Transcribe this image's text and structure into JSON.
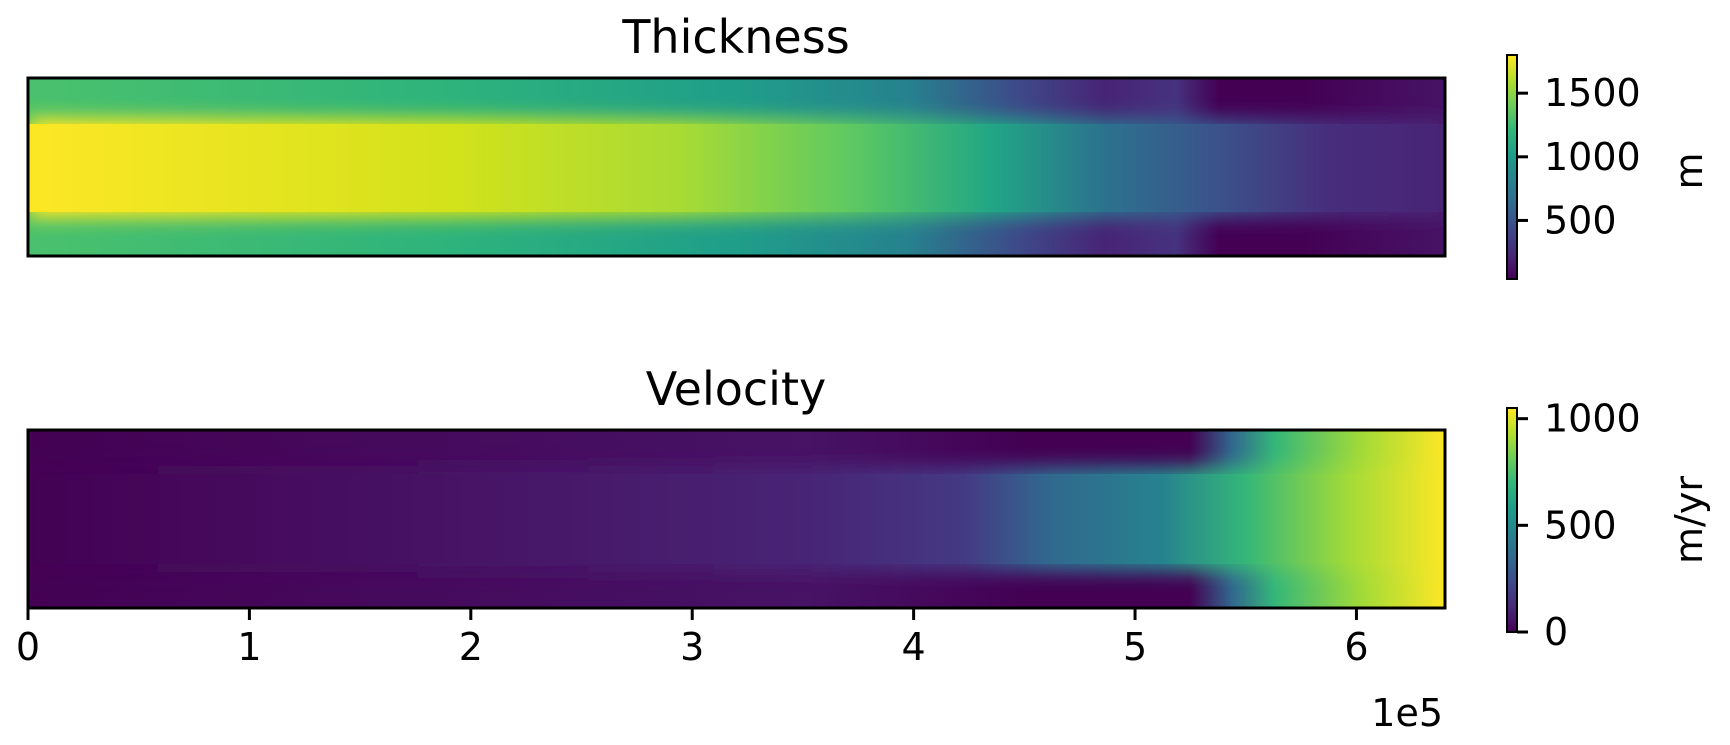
{
  "colors": {
    "viridis": [
      "#440154",
      "#482878",
      "#3e4989",
      "#31688e",
      "#26828e",
      "#1f9e89",
      "#35b779",
      "#6ece58",
      "#b5de2b",
      "#fde725"
    ],
    "frame": "#000000"
  },
  "chart_data": [
    {
      "type": "heatmap",
      "title": "Thickness",
      "colorbar": {
        "label": "m",
        "ticks": [
          500,
          1000,
          1500
        ],
        "tick_labels": [
          "500",
          "1000",
          "1500"
        ],
        "range": [
          40,
          1800
        ],
        "colormap": "viridis"
      },
      "x_axis": {
        "visible": false
      },
      "y_axis": {
        "visible": false
      },
      "description_values": {
        "x": [
          0,
          100000,
          200000,
          300000,
          400000,
          450000,
          500000,
          530000,
          560000,
          640000
        ],
        "center_band": [
          1750,
          1680,
          1580,
          1420,
          1150,
          700,
          400,
          220,
          160,
          150
        ],
        "edge_band": [
          1000,
          960,
          920,
          880,
          700,
          320,
          200,
          60,
          40,
          120
        ]
      }
    },
    {
      "type": "heatmap",
      "title": "Velocity",
      "colorbar": {
        "label": "m/yr",
        "ticks": [
          0,
          500,
          1000
        ],
        "tick_labels": [
          "0",
          "500",
          "1000"
        ],
        "range": [
          0,
          1050
        ],
        "colormap": "viridis"
      },
      "x_axis": {
        "ticks": [
          0,
          1,
          2,
          3,
          4,
          5,
          6
        ],
        "tick_labels": [
          "0",
          "1",
          "2",
          "3",
          "4",
          "5",
          "6"
        ],
        "offset_text": "1e5",
        "range": [
          0,
          6.4
        ]
      },
      "y_axis": {
        "visible": false
      },
      "description_values": {
        "x": [
          0,
          100000,
          200000,
          300000,
          400000,
          450000,
          500000,
          530000,
          560000,
          640000
        ],
        "center_band": [
          20,
          60,
          110,
          160,
          230,
          340,
          560,
          680,
          780,
          1030
        ],
        "edge_band": [
          10,
          30,
          60,
          100,
          160,
          120,
          40,
          200,
          700,
          1020
        ]
      }
    }
  ]
}
